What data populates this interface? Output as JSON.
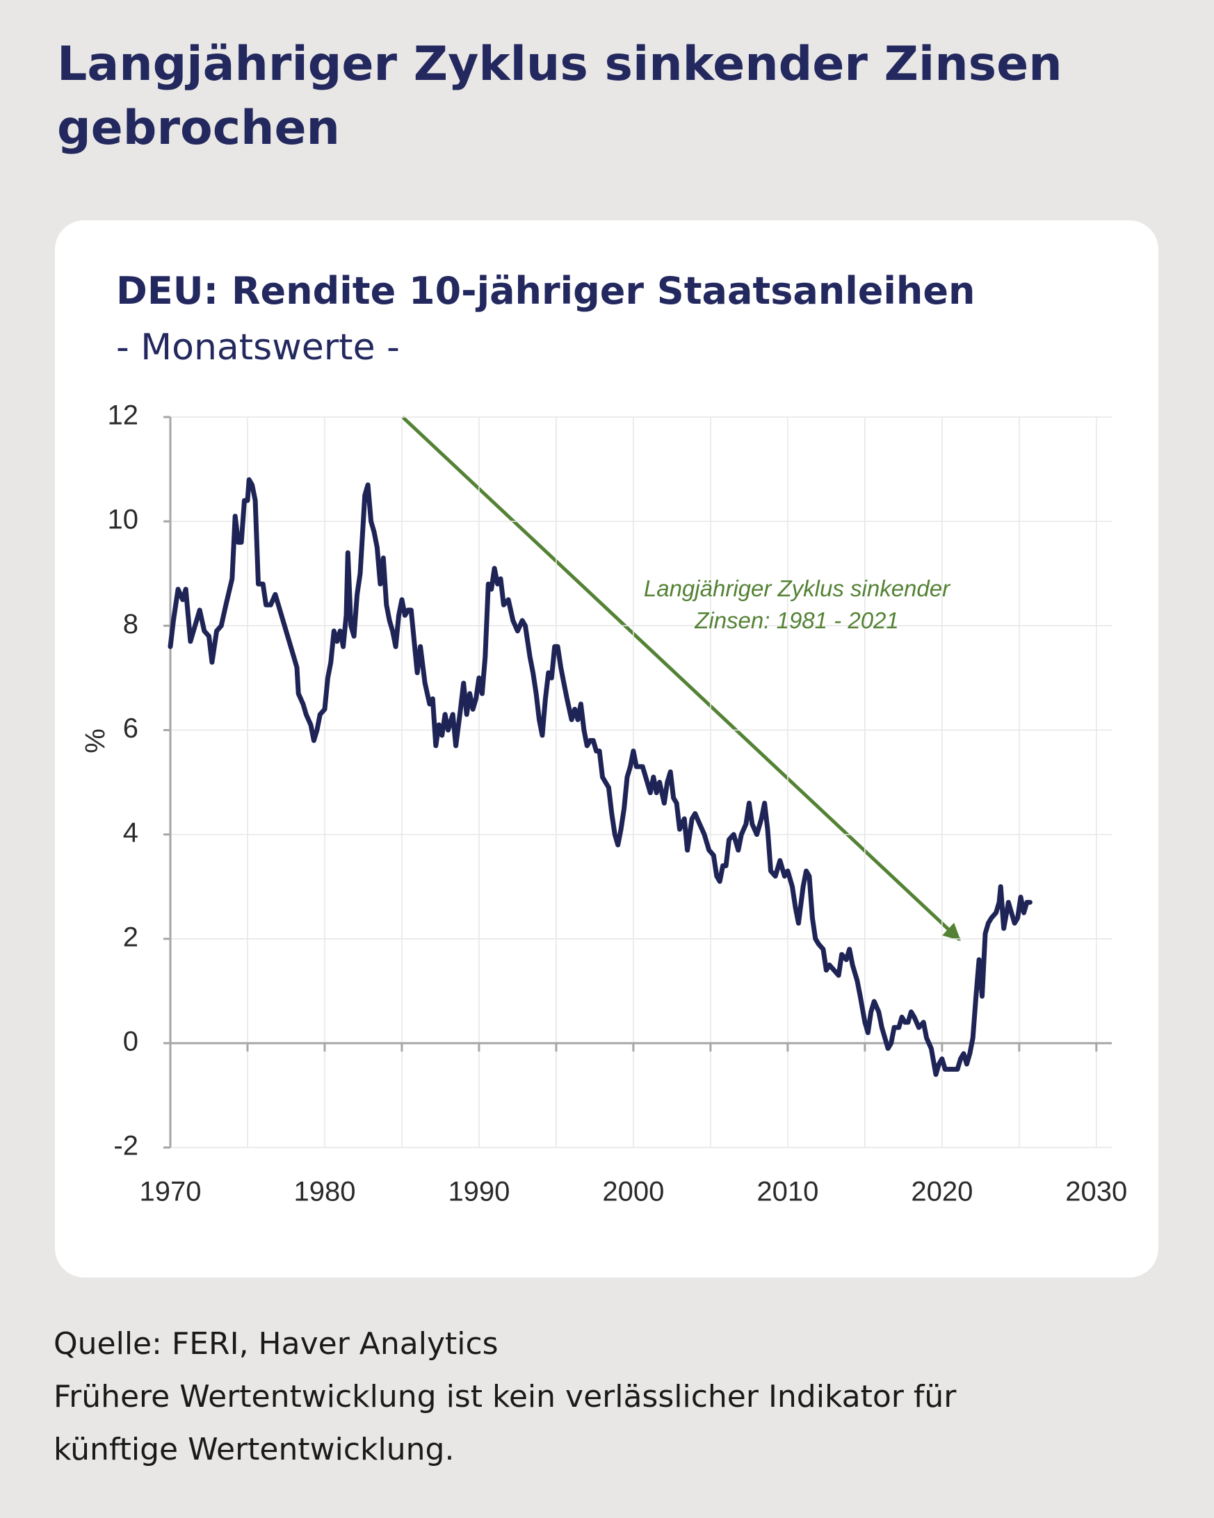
{
  "header": {
    "title": [
      "Langjähriger Zyklus sinkender Zinsen",
      "gebrochen"
    ]
  },
  "chart_data": {
    "type": "line",
    "title": "DEU: Rendite 10-jähriger Staatsanleihen",
    "subtitle": "- Monatswerte -",
    "y_label": "%",
    "annotation": [
      "Langjähriger Zyklus sinkender",
      "Zinsen: 1981 - 2021"
    ],
    "annotation_color": "#548235",
    "color": "#1f2456",
    "xlim": [
      1970,
      2031
    ],
    "xticks": [
      1970,
      1980,
      1990,
      2000,
      2010,
      2020,
      2030
    ],
    "x_minor_ticks": [
      1975,
      1985,
      1995,
      2005,
      2015,
      2025
    ],
    "ylim": [
      -2,
      12
    ],
    "yticks": [
      -2,
      0,
      2,
      4,
      6,
      8,
      10,
      12
    ],
    "grid": true,
    "x": [
      1970.0,
      1970.2,
      1970.5,
      1970.8,
      1971.0,
      1971.3,
      1971.6,
      1971.9,
      1972.2,
      1972.5,
      1972.7,
      1973.0,
      1973.3,
      1973.6,
      1974.0,
      1974.2,
      1974.4,
      1974.6,
      1974.8,
      1975.0,
      1975.1,
      1975.3,
      1975.5,
      1975.7,
      1976.0,
      1976.2,
      1976.5,
      1976.8,
      1977.2,
      1977.6,
      1978.0,
      1978.2,
      1978.3,
      1978.6,
      1978.8,
      1979.1,
      1979.3,
      1979.5,
      1979.7,
      1980.0,
      1980.2,
      1980.4,
      1980.6,
      1980.8,
      1981.0,
      1981.2,
      1981.4,
      1981.5,
      1981.7,
      1981.9,
      1982.1,
      1982.3,
      1982.5,
      1982.6,
      1982.8,
      1983.0,
      1983.2,
      1983.4,
      1983.6,
      1983.8,
      1984.0,
      1984.2,
      1984.4,
      1984.6,
      1984.8,
      1985.0,
      1985.2,
      1985.4,
      1985.6,
      1985.8,
      1986.0,
      1986.2,
      1986.5,
      1986.8,
      1987.0,
      1987.2,
      1987.4,
      1987.6,
      1987.8,
      1988.0,
      1988.3,
      1988.5,
      1988.8,
      1989.0,
      1989.2,
      1989.4,
      1989.6,
      1989.8,
      1990.0,
      1990.2,
      1990.4,
      1990.6,
      1990.8,
      1991.0,
      1991.2,
      1991.4,
      1991.6,
      1991.9,
      1992.2,
      1992.5,
      1992.8,
      1993.0,
      1993.3,
      1993.5,
      1993.7,
      1993.9,
      1994.1,
      1994.3,
      1994.5,
      1994.7,
      1994.9,
      1995.1,
      1995.3,
      1995.5,
      1995.7,
      1996.0,
      1996.2,
      1996.4,
      1996.6,
      1996.8,
      1997.0,
      1997.2,
      1997.4,
      1997.6,
      1997.8,
      1998.0,
      1998.2,
      1998.4,
      1998.6,
      1998.8,
      1999.0,
      1999.2,
      1999.4,
      1999.6,
      1999.8,
      2000.0,
      2000.2,
      2000.4,
      2000.6,
      2000.9,
      2001.1,
      2001.3,
      2001.5,
      2001.7,
      2002.0,
      2002.2,
      2002.4,
      2002.6,
      2002.8,
      2003.0,
      2003.3,
      2003.5,
      2003.8,
      2004.0,
      2004.3,
      2004.6,
      2004.9,
      2005.2,
      2005.4,
      2005.6,
      2005.8,
      2006.0,
      2006.2,
      2006.5,
      2006.8,
      2007.0,
      2007.3,
      2007.5,
      2007.7,
      2008.0,
      2008.3,
      2008.5,
      2008.7,
      2008.9,
      2009.2,
      2009.5,
      2009.8,
      2010.0,
      2010.3,
      2010.5,
      2010.7,
      2011.0,
      2011.2,
      2011.4,
      2011.6,
      2011.8,
      2012.0,
      2012.3,
      2012.5,
      2012.7,
      2013.0,
      2013.3,
      2013.5,
      2013.8,
      2014.0,
      2014.2,
      2014.5,
      2014.7,
      2015.0,
      2015.2,
      2015.4,
      2015.6,
      2015.9,
      2016.1,
      2016.3,
      2016.5,
      2016.7,
      2016.9,
      2017.2,
      2017.4,
      2017.6,
      2017.8,
      2018.0,
      2018.2,
      2018.5,
      2018.8,
      2019.0,
      2019.3,
      2019.6,
      2019.8,
      2020.0,
      2020.2,
      2020.5,
      2020.8,
      2021.0,
      2021.2,
      2021.4,
      2021.6,
      2021.8,
      2022.0,
      2022.2,
      2022.4,
      2022.6,
      2022.8,
      2023.0,
      2023.2,
      2023.5,
      2023.7,
      2023.8,
      2024.0,
      2024.3,
      2024.5,
      2024.7,
      2024.9,
      2025.1,
      2025.3,
      2025.5,
      2025.7
    ],
    "values": [
      7.6,
      8.1,
      8.7,
      8.5,
      8.7,
      7.7,
      8.0,
      8.3,
      7.9,
      7.8,
      7.3,
      7.9,
      8.0,
      8.4,
      8.9,
      10.1,
      9.6,
      9.6,
      10.4,
      10.4,
      10.8,
      10.7,
      10.4,
      8.8,
      8.8,
      8.4,
      8.4,
      8.6,
      8.2,
      7.8,
      7.4,
      7.2,
      6.7,
      6.5,
      6.3,
      6.1,
      5.8,
      6.0,
      6.3,
      6.4,
      7.0,
      7.3,
      7.9,
      7.7,
      7.9,
      7.6,
      8.2,
      9.4,
      8.0,
      7.8,
      8.6,
      9.0,
      10.0,
      10.5,
      10.7,
      10.0,
      9.8,
      9.5,
      8.8,
      9.3,
      8.4,
      8.1,
      7.9,
      7.6,
      8.2,
      8.5,
      8.2,
      8.3,
      8.3,
      7.7,
      7.1,
      7.6,
      6.9,
      6.5,
      6.6,
      5.7,
      6.1,
      5.9,
      6.3,
      6.0,
      6.3,
      5.7,
      6.4,
      6.9,
      6.3,
      6.7,
      6.4,
      6.6,
      7.0,
      6.7,
      7.4,
      8.8,
      8.7,
      9.1,
      8.8,
      8.9,
      8.4,
      8.5,
      8.1,
      7.9,
      8.1,
      8.0,
      7.4,
      7.1,
      6.7,
      6.2,
      5.9,
      6.6,
      7.1,
      7.0,
      7.6,
      7.6,
      7.2,
      6.9,
      6.6,
      6.2,
      6.4,
      6.2,
      6.5,
      6.0,
      5.7,
      5.8,
      5.8,
      5.6,
      5.6,
      5.1,
      5.0,
      4.9,
      4.4,
      4.0,
      3.8,
      4.1,
      4.5,
      5.1,
      5.3,
      5.6,
      5.3,
      5.3,
      5.3,
      5.0,
      4.8,
      5.1,
      4.8,
      5.0,
      4.6,
      5.0,
      5.2,
      4.7,
      4.6,
      4.1,
      4.3,
      3.7,
      4.3,
      4.4,
      4.2,
      4.0,
      3.7,
      3.6,
      3.2,
      3.1,
      3.4,
      3.4,
      3.9,
      4.0,
      3.7,
      4.0,
      4.2,
      4.6,
      4.2,
      4.0,
      4.3,
      4.6,
      4.1,
      3.3,
      3.2,
      3.5,
      3.2,
      3.3,
      3.0,
      2.6,
      2.3,
      3.0,
      3.3,
      3.2,
      2.4,
      2.0,
      1.9,
      1.8,
      1.4,
      1.5,
      1.4,
      1.3,
      1.7,
      1.6,
      1.8,
      1.5,
      1.2,
      0.9,
      0.4,
      0.2,
      0.6,
      0.8,
      0.6,
      0.3,
      0.1,
      -0.1,
      0.0,
      0.3,
      0.3,
      0.5,
      0.4,
      0.4,
      0.6,
      0.5,
      0.3,
      0.4,
      0.1,
      -0.1,
      -0.6,
      -0.4,
      -0.3,
      -0.5,
      -0.5,
      -0.5,
      -0.5,
      -0.3,
      -0.2,
      -0.4,
      -0.2,
      0.1,
      0.9,
      1.6,
      0.9,
      2.1,
      2.3,
      2.4,
      2.5,
      2.7,
      3.0,
      2.2,
      2.7,
      2.5,
      2.3,
      2.4,
      2.8,
      2.5,
      2.7,
      2.7
    ]
  },
  "footer": {
    "source": "Quelle: FERI, Haver Analytics",
    "disclaimer": [
      "Frühere Wertentwicklung ist kein verlässlicher Indikator für",
      "künftige Wertentwicklung."
    ]
  }
}
